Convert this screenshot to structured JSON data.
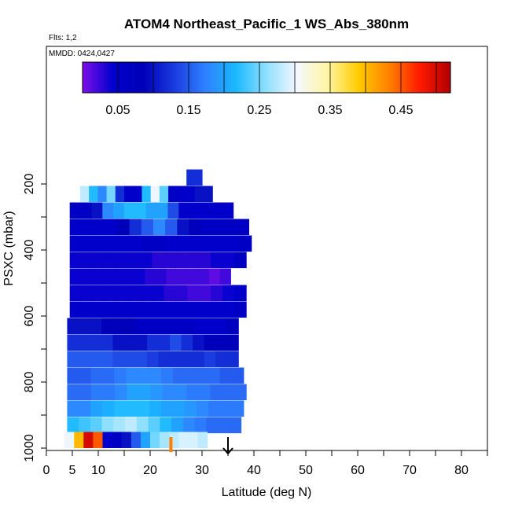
{
  "chart_data": {
    "type": "heatmap",
    "title": "ATOM4 Northeast_Pacific_1 WS_Abs_380nm",
    "subtitle_flights": "Flts: 1,2",
    "subtitle_dates": "MMDD: 0424,0427",
    "xlabel": "Latitude (deg N)",
    "ylabel": "PSXC (mbar)",
    "xlim": [
      0,
      85
    ],
    "ylim": [
      1000,
      0
    ],
    "x_ticks": [
      0,
      5,
      10,
      20,
      30,
      40,
      50,
      60,
      70,
      80
    ],
    "x_minor_ticks": [
      15,
      25,
      35,
      45,
      55,
      65,
      75,
      85
    ],
    "y_ticks": [
      200,
      400,
      600,
      800,
      1000
    ],
    "y_minor_ticks": [
      300,
      500,
      700,
      900
    ],
    "colorbar": {
      "range": [
        0.0,
        0.52
      ],
      "tick_values": [
        0.05,
        0.15,
        0.25,
        0.35,
        0.45
      ],
      "tick_labels": [
        "0.05",
        "0.15",
        "0.25",
        "0.35",
        "0.45"
      ],
      "colors": [
        "#7b10e8",
        "#0000cd",
        "#0000b8",
        "#1a3ce0",
        "#2f80ff",
        "#1ab8ff",
        "#8fe0ff",
        "#f5f8ff",
        "#fff5a0",
        "#ffcc00",
        "#ff8000",
        "#ff1a00",
        "#b00000"
      ]
    },
    "rows": [
      {
        "p": 180,
        "x0": 27,
        "x1": 30,
        "values": [
          0.12,
          0.12,
          0.12
        ]
      },
      {
        "p": 230,
        "x0": 6.5,
        "x1": 32,
        "values": [
          0.28,
          0.22,
          0.18,
          0.25,
          0.12,
          0.05,
          0.05,
          0.22,
          0.3,
          0.24,
          0.06,
          0.05,
          0.05,
          0.1,
          0.1
        ]
      },
      {
        "p": 280,
        "x0": 4.5,
        "x1": 36,
        "values": [
          0.06,
          0.06,
          0.1,
          0.18,
          0.2,
          0.22,
          0.22,
          0.2,
          0.2,
          0.14,
          0.05,
          0.05,
          0.05,
          0.05,
          0.05
        ]
      },
      {
        "p": 330,
        "x0": 4.5,
        "x1": 39,
        "values": [
          0.05,
          0.05,
          0.05,
          0.05,
          0.08,
          0.12,
          0.15,
          0.18,
          0.15,
          0.1,
          0.08,
          0.06,
          0.06,
          0.06,
          0.06
        ]
      },
      {
        "p": 380,
        "x0": 4.5,
        "x1": 39.5,
        "values": [
          0.05,
          0.05,
          0.05,
          0.05,
          0.05,
          0.05,
          0.06,
          0.06,
          0.05,
          0.05,
          0.05,
          0.05,
          0.05,
          0.05,
          0.06
        ]
      },
      {
        "p": 430,
        "x0": 4.5,
        "x1": 38.5,
        "values": [
          0.04,
          0.04,
          0.04,
          0.04,
          0.04,
          0.04,
          0.04,
          0.03,
          0.03,
          0.03,
          0.03,
          0.03,
          0.04,
          0.04,
          0.06
        ]
      },
      {
        "p": 480,
        "x0": 4.5,
        "x1": 35.5,
        "values": [
          0.04,
          0.04,
          0.04,
          0.04,
          0.04,
          0.04,
          0.04,
          0.03,
          0.03,
          0.02,
          0.02,
          0.02,
          0.02,
          0.01,
          0.02
        ]
      },
      {
        "p": 530,
        "x0": 4.5,
        "x1": 38.5,
        "values": [
          0.04,
          0.04,
          0.04,
          0.04,
          0.04,
          0.04,
          0.04,
          0.04,
          0.03,
          0.03,
          0.02,
          0.02,
          0.03,
          0.04,
          0.05
        ]
      },
      {
        "p": 580,
        "x0": 4.5,
        "x1": 38.5,
        "values": [
          0.05,
          0.05,
          0.05,
          0.05,
          0.05,
          0.05,
          0.05,
          0.05,
          0.05,
          0.05,
          0.05,
          0.05,
          0.05,
          0.05,
          0.06
        ]
      },
      {
        "p": 630,
        "x0": 4,
        "x1": 37,
        "values": [
          0.1,
          0.1,
          0.1,
          0.08,
          0.08,
          0.08,
          0.06,
          0.06,
          0.06,
          0.06,
          0.06,
          0.05,
          0.05,
          0.05,
          0.07
        ]
      },
      {
        "p": 680,
        "x0": 4,
        "x1": 37,
        "values": [
          0.12,
          0.12,
          0.12,
          0.12,
          0.1,
          0.1,
          0.1,
          0.12,
          0.12,
          0.14,
          0.12,
          0.1,
          0.08,
          0.08,
          0.08
        ]
      },
      {
        "p": 730,
        "x0": 4,
        "x1": 37,
        "values": [
          0.15,
          0.15,
          0.15,
          0.15,
          0.14,
          0.14,
          0.14,
          0.13,
          0.12,
          0.12,
          0.12,
          0.12,
          0.13,
          0.12,
          0.12
        ]
      },
      {
        "p": 780,
        "x0": 4,
        "x1": 38,
        "values": [
          0.15,
          0.15,
          0.16,
          0.16,
          0.17,
          0.18,
          0.18,
          0.18,
          0.17,
          0.16,
          0.16,
          0.16,
          0.16,
          0.15,
          0.15
        ]
      },
      {
        "p": 830,
        "x0": 4,
        "x1": 38.5,
        "values": [
          0.16,
          0.16,
          0.17,
          0.17,
          0.18,
          0.2,
          0.2,
          0.19,
          0.18,
          0.18,
          0.17,
          0.17,
          0.16,
          0.16,
          0.16
        ]
      },
      {
        "p": 880,
        "x0": 4,
        "x1": 38,
        "values": [
          0.18,
          0.18,
          0.2,
          0.21,
          0.22,
          0.22,
          0.22,
          0.21,
          0.2,
          0.2,
          0.19,
          0.18,
          0.17,
          0.17,
          0.17
        ]
      },
      {
        "p": 930,
        "x0": 4,
        "x1": 37.5,
        "values": [
          0.22,
          0.23,
          0.24,
          0.26,
          0.27,
          0.28,
          0.26,
          0.24,
          0.22,
          0.2,
          0.18,
          0.17,
          0.16,
          0.16,
          0.16
        ]
      },
      {
        "p": 975,
        "x0": 3.5,
        "x1": 31,
        "values": [
          0.3,
          0.4,
          0.5,
          0.45,
          0.05,
          0.06,
          0.1,
          0.15,
          0.2,
          0.25,
          0.27,
          0.28,
          0.29,
          0.29,
          0.28
        ]
      }
    ],
    "markers": [
      {
        "type": "bar",
        "x": 24,
        "color": "#ff8000"
      },
      {
        "type": "arrow",
        "x": 35
      }
    ]
  }
}
